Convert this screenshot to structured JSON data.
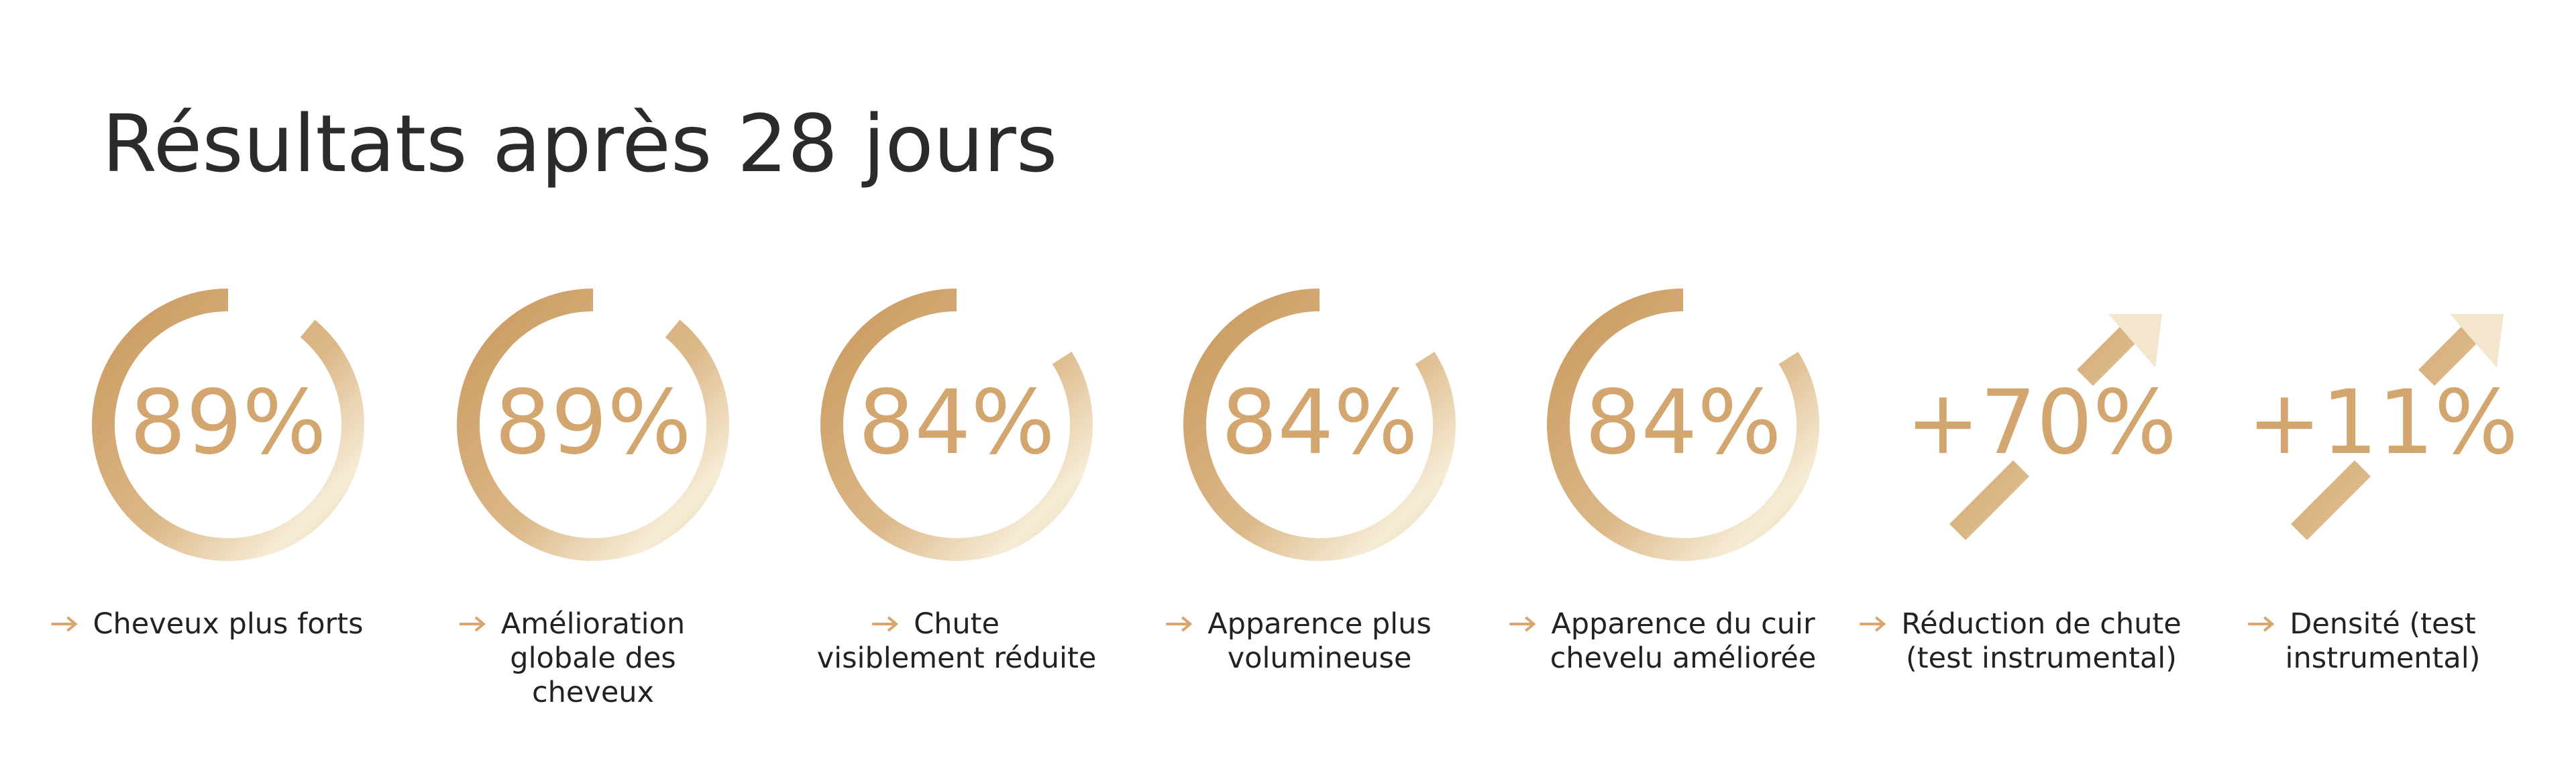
{
  "title": "Résultats après 28 jours",
  "accent_color": "#d9a56a",
  "items": [
    {
      "shape": "ring",
      "value": 89,
      "value_label": "89%",
      "caption": [
        "Cheveux plus forts"
      ]
    },
    {
      "shape": "ring",
      "value": 89,
      "value_label": "89%",
      "caption": [
        "Amélioration",
        "globale des",
        "cheveux"
      ]
    },
    {
      "shape": "ring",
      "value": 84,
      "value_label": "84%",
      "caption": [
        "Chute",
        "visiblement réduite"
      ]
    },
    {
      "shape": "ring",
      "value": 84,
      "value_label": "84%",
      "caption": [
        "Apparence plus",
        "volumineuse"
      ]
    },
    {
      "shape": "ring",
      "value": 84,
      "value_label": "84%",
      "caption": [
        "Apparence du cuir",
        "chevelu améliorée"
      ]
    },
    {
      "shape": "arrow",
      "value": 70,
      "value_label": "+70%",
      "caption": [
        "Réduction de chute",
        "(test instrumental)"
      ]
    },
    {
      "shape": "arrow",
      "value": 11,
      "value_label": "+11%",
      "caption": [
        "Densité (test",
        "instrumental)"
      ]
    }
  ]
}
